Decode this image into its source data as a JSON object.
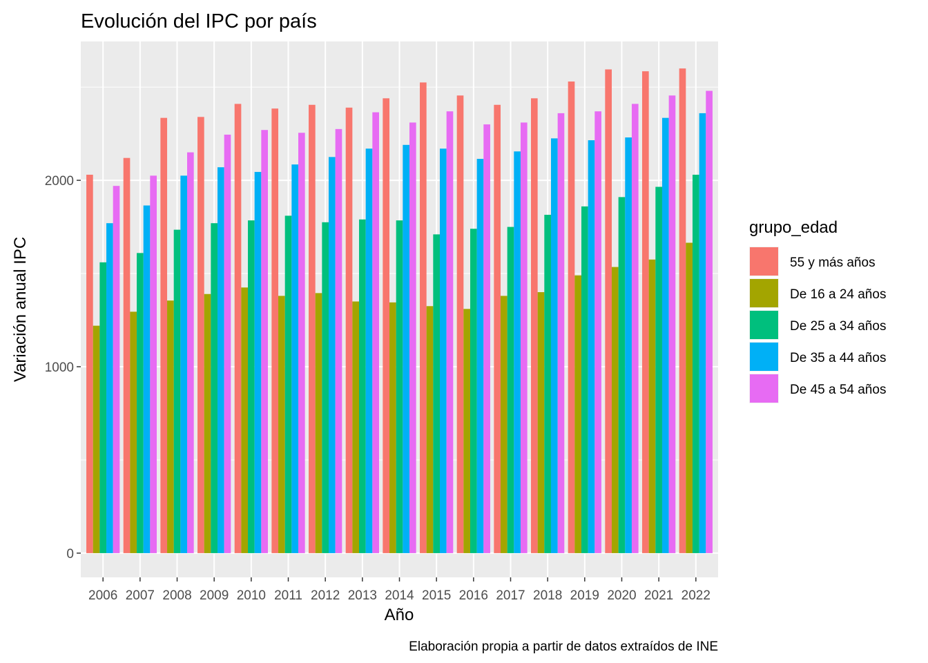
{
  "chart_data": {
    "type": "bar",
    "title": "Evolución del IPC por país",
    "xlabel": "Año",
    "ylabel": "Variación anual IPC",
    "caption": "Elaboración propia a partir de datos extraídos de INE",
    "legend_title": "grupo_edad",
    "legend_position": "right",
    "grid": true,
    "ylim": [
      -130,
      2745
    ],
    "y_ticks": [
      0,
      1000,
      2000
    ],
    "categories": [
      "2006",
      "2007",
      "2008",
      "2009",
      "2010",
      "2011",
      "2012",
      "2013",
      "2014",
      "2015",
      "2016",
      "2017",
      "2018",
      "2019",
      "2020",
      "2021",
      "2022"
    ],
    "series": [
      {
        "name": "55 y más años",
        "color": "#F8766D",
        "values": [
          2030,
          2120,
          2335,
          2340,
          2410,
          2385,
          2405,
          2390,
          2440,
          2525,
          2455,
          2405,
          2440,
          2530,
          2595,
          2585,
          2600
        ]
      },
      {
        "name": "De 16 a 24 años",
        "color": "#A3A500",
        "values": [
          1220,
          1295,
          1355,
          1390,
          1425,
          1380,
          1395,
          1350,
          1345,
          1325,
          1310,
          1380,
          1400,
          1490,
          1535,
          1575,
          1665
        ]
      },
      {
        "name": "De 25 a 34 años",
        "color": "#00BF7D",
        "values": [
          1560,
          1610,
          1735,
          1770,
          1785,
          1810,
          1775,
          1790,
          1785,
          1710,
          1740,
          1750,
          1815,
          1860,
          1910,
          1965,
          2030
        ]
      },
      {
        "name": "De 35 a 44 años",
        "color": "#00B0F6",
        "values": [
          1770,
          1865,
          2025,
          2070,
          2045,
          2085,
          2125,
          2170,
          2190,
          2170,
          2115,
          2155,
          2225,
          2215,
          2230,
          2335,
          2360
        ]
      },
      {
        "name": "De 45 a 54 años",
        "color": "#E76BF3",
        "values": [
          1970,
          2025,
          2150,
          2245,
          2270,
          2255,
          2275,
          2365,
          2310,
          2370,
          2300,
          2310,
          2360,
          2370,
          2410,
          2455,
          2480
        ]
      }
    ]
  }
}
